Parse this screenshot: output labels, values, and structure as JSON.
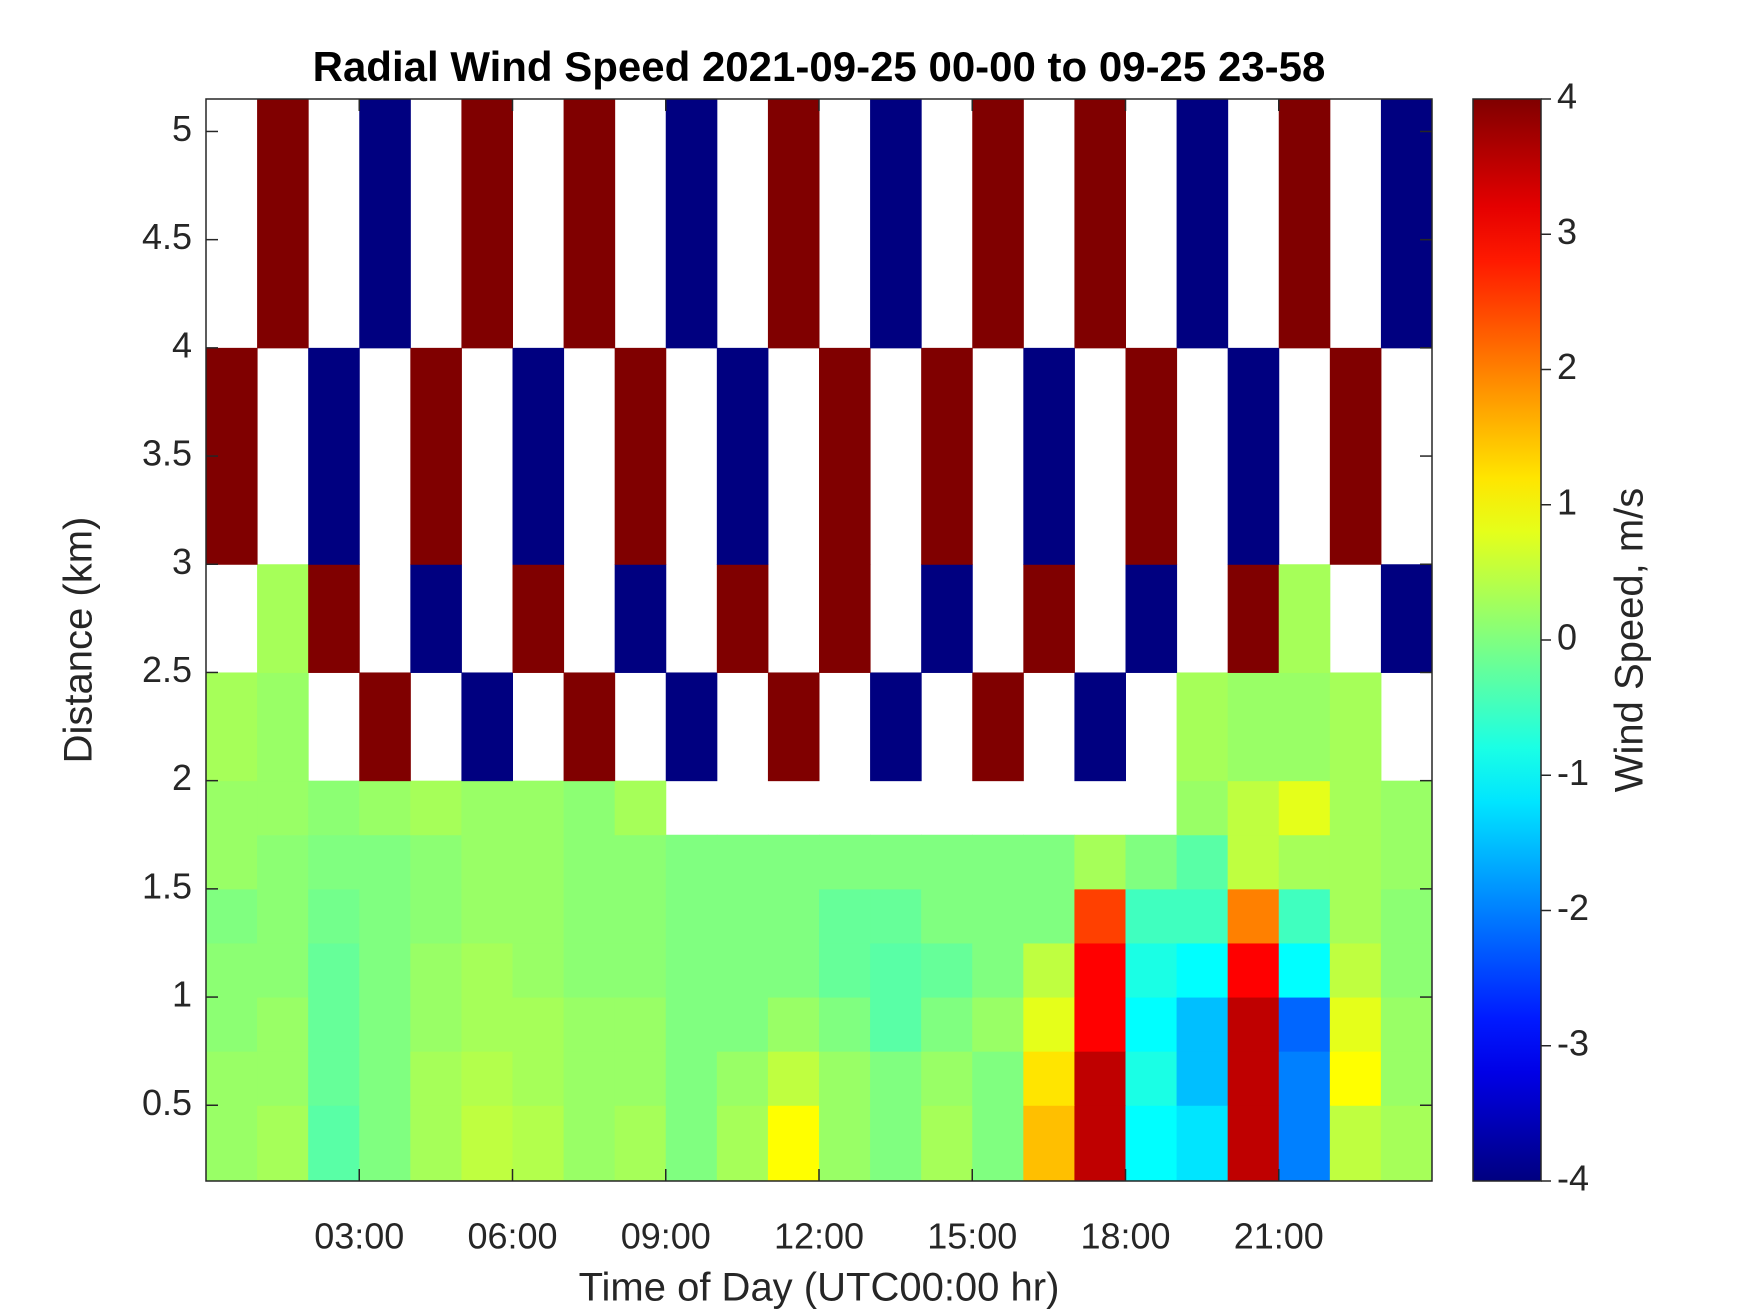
{
  "chart_data": {
    "type": "heatmap",
    "title": "Radial Wind Speed 2021-09-25 00-00 to 09-25 23-58",
    "x_label": "Time of Day (UTC00:00 hr)",
    "y_label": "Distance (km)",
    "colorbar_label": "Wind Speed, m/s",
    "colormap": "jet",
    "x_edges": [
      0,
      1,
      2,
      3,
      4,
      5,
      6,
      7,
      8,
      9,
      10,
      11,
      12,
      13,
      14,
      15,
      16,
      17,
      18,
      19,
      20,
      21,
      22,
      23,
      24
    ],
    "y_edges": [
      0.15,
      0.5,
      0.75,
      1.0,
      1.25,
      1.5,
      1.75,
      2.0,
      2.5,
      3.0,
      4.0,
      5.15
    ],
    "z": [
      [
        0.2,
        0.3,
        -0.3,
        0,
        0.3,
        0.5,
        0.4,
        0.2,
        0.3,
        0,
        0.3,
        1,
        0.2,
        0,
        0.3,
        0,
        1.5,
        3.5,
        -1,
        -1.2,
        3.5,
        -2,
        0.5,
        0.3
      ],
      [
        0.2,
        0.2,
        -0.2,
        0,
        0.3,
        0.4,
        0.3,
        0.2,
        0.2,
        0,
        0.2,
        0.5,
        0.2,
        0,
        0.2,
        0,
        1.2,
        3.5,
        -0.8,
        -1.5,
        3.5,
        -2,
        1,
        0.2
      ],
      [
        0.1,
        0.2,
        -0.2,
        0,
        0.2,
        0.3,
        0.3,
        0.2,
        0.2,
        0,
        0,
        0.2,
        0,
        -0.3,
        0,
        0.2,
        0.8,
        3,
        -1,
        -1.5,
        3.5,
        -2.2,
        0.8,
        0.2
      ],
      [
        0.1,
        0.1,
        -0.2,
        0,
        0.2,
        0.3,
        0.2,
        0.1,
        0.1,
        0,
        0,
        0,
        -0.2,
        -0.3,
        -0.2,
        0,
        0.5,
        3,
        -0.8,
        -1,
        3,
        -1,
        0.5,
        0.1
      ],
      [
        0,
        0.1,
        -0.1,
        0,
        0.1,
        0.2,
        0.2,
        0.1,
        0.1,
        0,
        0,
        0,
        -0.2,
        -0.2,
        0,
        0,
        0,
        2.5,
        -0.5,
        -0.5,
        2,
        -0.5,
        0.3,
        0.1
      ],
      [
        0.2,
        0.1,
        0,
        0,
        0.1,
        0.2,
        0.2,
        0.1,
        0.1,
        0,
        0,
        0,
        0,
        0,
        0,
        0,
        0,
        0.3,
        0,
        -0.3,
        0.5,
        0.3,
        0.3,
        0.2
      ],
      [
        0.2,
        0.2,
        0.1,
        0.2,
        0.3,
        0.2,
        0.2,
        0.1,
        0.3,
        null,
        null,
        null,
        null,
        null,
        null,
        null,
        null,
        null,
        null,
        0.2,
        0.5,
        0.8,
        0.3,
        0.2
      ],
      [
        0.3,
        0.2,
        null,
        4,
        null,
        -4,
        null,
        4,
        null,
        -4,
        null,
        4,
        null,
        -4,
        null,
        4,
        null,
        -4,
        null,
        0.3,
        0.2,
        0.2,
        0.3,
        null
      ],
      [
        null,
        0.3,
        4,
        null,
        -4,
        null,
        4,
        null,
        -4,
        null,
        4,
        null,
        4,
        null,
        -4,
        null,
        4,
        null,
        -4,
        null,
        4,
        0.3,
        null,
        -4
      ],
      [
        4,
        null,
        -4,
        null,
        4,
        null,
        -4,
        null,
        4,
        null,
        -4,
        null,
        4,
        null,
        4,
        null,
        -4,
        null,
        4,
        null,
        -4,
        null,
        4,
        null
      ],
      [
        null,
        4,
        null,
        -4,
        null,
        4,
        null,
        4,
        null,
        -4,
        null,
        4,
        null,
        -4,
        null,
        4,
        null,
        4,
        null,
        -4,
        null,
        4,
        null,
        -4
      ]
    ],
    "xlim": [
      0,
      24
    ],
    "ylim": [
      0.15,
      5.15
    ],
    "clim": [
      -4,
      4
    ],
    "xticks": [
      {
        "value": 3,
        "label": "03:00"
      },
      {
        "value": 6,
        "label": "06:00"
      },
      {
        "value": 9,
        "label": "09:00"
      },
      {
        "value": 12,
        "label": "12:00"
      },
      {
        "value": 15,
        "label": "15:00"
      },
      {
        "value": 18,
        "label": "18:00"
      },
      {
        "value": 21,
        "label": "21:00"
      }
    ],
    "yticks": [
      0.5,
      1,
      1.5,
      2,
      2.5,
      3,
      3.5,
      4,
      4.5,
      5
    ],
    "cticks": [
      -4,
      -3,
      -2,
      -1,
      0,
      1,
      2,
      3,
      4
    ]
  }
}
